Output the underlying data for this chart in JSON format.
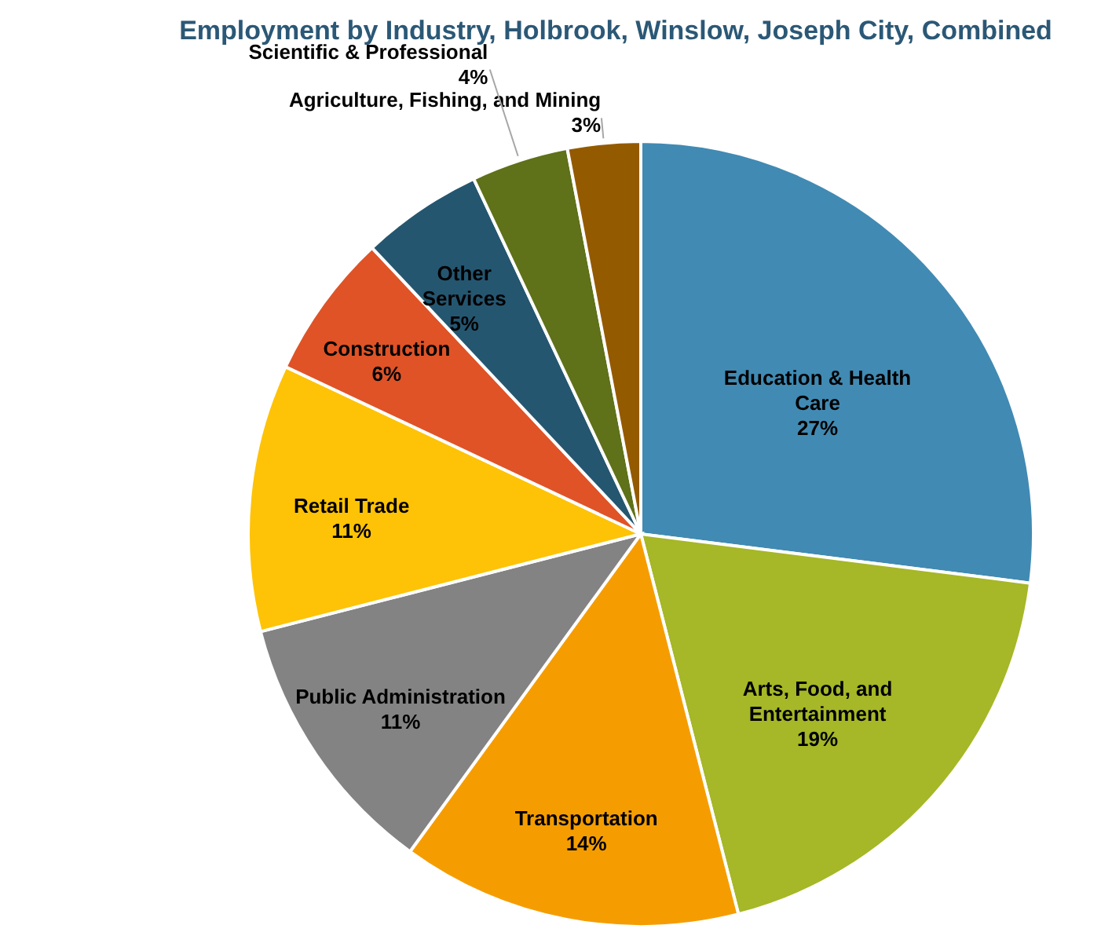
{
  "chart_data": {
    "type": "pie",
    "title": "Employment by Industry, Holbrook, Winslow, Joseph City, Combined",
    "categories": [
      "Education & Health Care",
      "Arts, Food, and Entertainment",
      "Transportation",
      "Public Administration",
      "Retail Trade",
      "Construction",
      "Other Services",
      "Scientific & Professional",
      "Agriculture, Fishing, and Mining"
    ],
    "values": [
      27,
      19,
      14,
      11,
      11,
      6,
      5,
      4,
      3
    ],
    "value_labels": [
      "27%",
      "19%",
      "14%",
      "11%",
      "11%",
      "6%",
      "5%",
      "4%",
      "3%"
    ],
    "colors": [
      "#418ab3",
      "#a6b727",
      "#f59d00",
      "#838383",
      "#fec306",
      "#df5327",
      "#255670",
      "#5f7119",
      "#945a00"
    ],
    "legend": false
  }
}
